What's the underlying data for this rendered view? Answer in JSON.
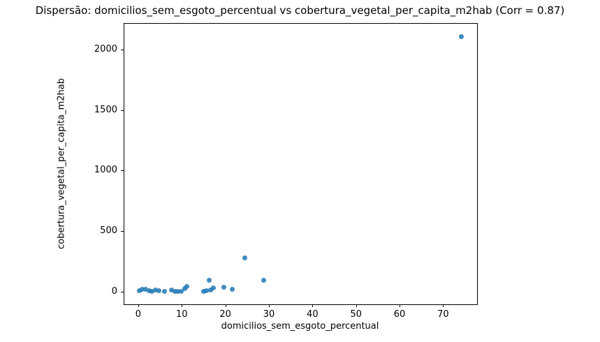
{
  "chart_data": {
    "type": "scatter",
    "title": "Dispersão: domicilios_sem_esgoto_percentual vs cobertura_vegetal_per_capita_m2hab (Corr = 0.87)",
    "xlabel": "domicilios_sem_esgoto_percentual",
    "ylabel": "cobertura_vegetal_per_capita_m2hab",
    "correlation": 0.87,
    "xlim": [
      -3.2,
      77.8
    ],
    "ylim": [
      -104,
      2213
    ],
    "x_ticks": [
      0,
      10,
      20,
      30,
      40,
      50,
      60,
      70
    ],
    "y_ticks": [
      0,
      500,
      1000,
      1500,
      2000
    ],
    "grid": false,
    "legend": "none",
    "marker_color": "#1f77b4",
    "marker_alpha": 0.85,
    "points": [
      {
        "x": 0.3,
        "y": 8
      },
      {
        "x": 0.9,
        "y": 18
      },
      {
        "x": 1.7,
        "y": 22
      },
      {
        "x": 2.5,
        "y": 10
      },
      {
        "x": 3.2,
        "y": 3
      },
      {
        "x": 4.0,
        "y": 15
      },
      {
        "x": 4.7,
        "y": 6
      },
      {
        "x": 6.1,
        "y": 2
      },
      {
        "x": 7.7,
        "y": 17
      },
      {
        "x": 8.4,
        "y": 1
      },
      {
        "x": 9.1,
        "y": 0
      },
      {
        "x": 9.8,
        "y": 4
      },
      {
        "x": 10.6,
        "y": 28
      },
      {
        "x": 11.2,
        "y": 42
      },
      {
        "x": 15.0,
        "y": 3
      },
      {
        "x": 15.6,
        "y": 8
      },
      {
        "x": 16.3,
        "y": 95
      },
      {
        "x": 16.6,
        "y": 12
      },
      {
        "x": 17.2,
        "y": 31
      },
      {
        "x": 19.6,
        "y": 36
      },
      {
        "x": 21.6,
        "y": 22
      },
      {
        "x": 24.4,
        "y": 280
      },
      {
        "x": 28.8,
        "y": 95
      },
      {
        "x": 74.2,
        "y": 2105
      }
    ]
  }
}
